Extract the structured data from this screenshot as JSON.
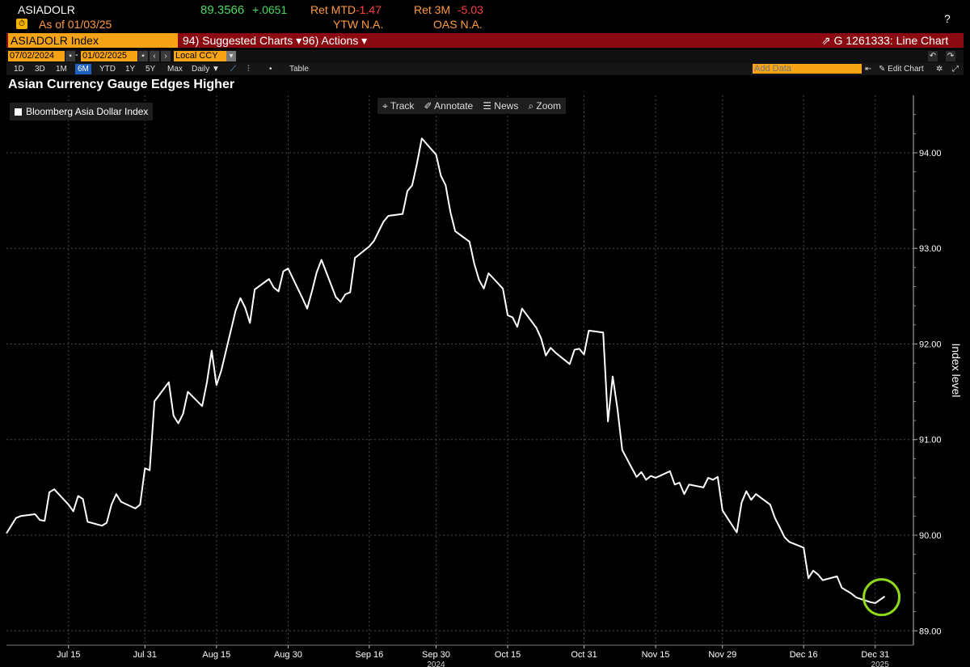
{
  "header": {
    "ticker": "ASIADOLR",
    "price": "89.3566",
    "change": "+.0651",
    "ret_mtd_label": "Ret MTD",
    "ret_mtd_value": "-1.47",
    "ret_3m_label": "Ret 3M",
    "ret_3m_value": "-5.03",
    "as_of": "As of  01/03/25",
    "ytw": "YTW N.A.",
    "oas": "OAS N.A.",
    "close_symbol": "?"
  },
  "toolbar": {
    "security": "ASIADOLR Index",
    "suggested": "94) Suggested Charts ▾",
    "actions": "96) Actions ▾",
    "chart_id": "⇗ G 1261333: Line Chart",
    "start_date": "07/02/2024",
    "dash": "-",
    "end_date": "01/02/2025",
    "currency": "Local CCY",
    "ranges": [
      "1D",
      "3D",
      "1M",
      "6M",
      "YTD",
      "1Y",
      "5Y",
      "Max"
    ],
    "period": "Daily ▼",
    "table": "Table",
    "add_data_placeholder": "Add Data",
    "edit_chart": "✎ Edit Chart"
  },
  "chart_tools": {
    "track": "⌖ Track",
    "annotate": "✐ Annotate",
    "news": "☰ News",
    "zoom": "⌕ Zoom"
  },
  "colors": {
    "background": "#000000",
    "line": "#ffffff",
    "grid": "#4a4a4a",
    "highlight_circle": "#8fd91a",
    "orange": "#f6a316",
    "red_bar": "#8b0a12"
  },
  "chart_data": {
    "type": "line",
    "title": "Asian Currency Gauge Edges Higher",
    "legend": [
      "Bloomberg Asia Dollar Index"
    ],
    "ylabel": "Index level",
    "ylim": [
      88.85,
      94.6
    ],
    "yticks": [
      89.0,
      90.0,
      91.0,
      92.0,
      93.0,
      94.0
    ],
    "ytick_labels": [
      "89.00",
      "90.00",
      "91.00",
      "92.00",
      "93.00",
      "94.00"
    ],
    "xlim": [
      "2024-07-02",
      "2025-01-08"
    ],
    "xticks": [
      "2024-07-15",
      "2024-07-31",
      "2024-08-15",
      "2024-08-30",
      "2024-09-16",
      "2024-09-30",
      "2024-10-15",
      "2024-10-31",
      "2024-11-15",
      "2024-11-29",
      "2024-12-16",
      "2024-12-31"
    ],
    "xtick_labels": [
      "Jul 15",
      "Jul 31",
      "Aug 15",
      "Aug 30",
      "Sep 16",
      "Sep 30",
      "Oct 15",
      "Oct 31",
      "Nov 15",
      "Nov 29",
      "Dec 16",
      "Dec 31"
    ],
    "year_labels": [
      {
        "date": "2024-09-30",
        "text": "2024"
      },
      {
        "date": "2025-01-01",
        "text": "2025"
      }
    ],
    "grid": true,
    "legend_position": "top-left",
    "series": [
      {
        "name": "Bloomberg Asia Dollar Index",
        "points": [
          [
            "2024-07-02",
            90.02
          ],
          [
            "2024-07-03",
            90.1
          ],
          [
            "2024-07-04",
            90.18
          ],
          [
            "2024-07-05",
            90.2
          ],
          [
            "2024-07-08",
            90.22
          ],
          [
            "2024-07-09",
            90.16
          ],
          [
            "2024-07-10",
            90.15
          ],
          [
            "2024-07-11",
            90.45
          ],
          [
            "2024-07-12",
            90.48
          ],
          [
            "2024-07-15",
            90.32
          ],
          [
            "2024-07-16",
            90.25
          ],
          [
            "2024-07-17",
            90.41
          ],
          [
            "2024-07-18",
            90.38
          ],
          [
            "2024-07-19",
            90.14
          ],
          [
            "2024-07-22",
            90.1
          ],
          [
            "2024-07-23",
            90.13
          ],
          [
            "2024-07-24",
            90.32
          ],
          [
            "2024-07-25",
            90.43
          ],
          [
            "2024-07-26",
            90.35
          ],
          [
            "2024-07-29",
            90.28
          ],
          [
            "2024-07-30",
            90.32
          ],
          [
            "2024-07-31",
            90.7
          ],
          [
            "2024-08-01",
            90.68
          ],
          [
            "2024-08-02",
            91.4
          ],
          [
            "2024-08-05",
            91.6
          ],
          [
            "2024-08-06",
            91.25
          ],
          [
            "2024-08-07",
            91.17
          ],
          [
            "2024-08-08",
            91.27
          ],
          [
            "2024-08-09",
            91.5
          ],
          [
            "2024-08-12",
            91.35
          ],
          [
            "2024-08-13",
            91.6
          ],
          [
            "2024-08-14",
            91.93
          ],
          [
            "2024-08-15",
            91.57
          ],
          [
            "2024-08-16",
            91.72
          ],
          [
            "2024-08-19",
            92.35
          ],
          [
            "2024-08-20",
            92.48
          ],
          [
            "2024-08-21",
            92.38
          ],
          [
            "2024-08-22",
            92.22
          ],
          [
            "2024-08-23",
            92.57
          ],
          [
            "2024-08-26",
            92.68
          ],
          [
            "2024-08-27",
            92.59
          ],
          [
            "2024-08-28",
            92.55
          ],
          [
            "2024-08-29",
            92.76
          ],
          [
            "2024-08-30",
            92.79
          ],
          [
            "2024-09-02",
            92.48
          ],
          [
            "2024-09-03",
            92.37
          ],
          [
            "2024-09-04",
            92.55
          ],
          [
            "2024-09-05",
            92.75
          ],
          [
            "2024-09-06",
            92.88
          ],
          [
            "2024-09-09",
            92.49
          ],
          [
            "2024-09-10",
            92.44
          ],
          [
            "2024-09-11",
            92.52
          ],
          [
            "2024-09-12",
            92.54
          ],
          [
            "2024-09-13",
            92.9
          ],
          [
            "2024-09-16",
            93.02
          ],
          [
            "2024-09-17",
            93.08
          ],
          [
            "2024-09-18",
            93.18
          ],
          [
            "2024-09-19",
            93.28
          ],
          [
            "2024-09-20",
            93.34
          ],
          [
            "2024-09-23",
            93.36
          ],
          [
            "2024-09-24",
            93.6
          ],
          [
            "2024-09-25",
            93.66
          ],
          [
            "2024-09-26",
            93.89
          ],
          [
            "2024-09-27",
            94.15
          ],
          [
            "2024-09-30",
            93.98
          ],
          [
            "2024-10-01",
            93.76
          ],
          [
            "2024-10-02",
            93.66
          ],
          [
            "2024-10-03",
            93.38
          ],
          [
            "2024-10-04",
            93.18
          ],
          [
            "2024-10-07",
            93.07
          ],
          [
            "2024-10-08",
            92.84
          ],
          [
            "2024-10-09",
            92.67
          ],
          [
            "2024-10-10",
            92.58
          ],
          [
            "2024-10-11",
            92.74
          ],
          [
            "2024-10-14",
            92.58
          ],
          [
            "2024-10-15",
            92.3
          ],
          [
            "2024-10-16",
            92.28
          ],
          [
            "2024-10-17",
            92.18
          ],
          [
            "2024-10-18",
            92.37
          ],
          [
            "2024-10-21",
            92.17
          ],
          [
            "2024-10-22",
            92.06
          ],
          [
            "2024-10-23",
            91.88
          ],
          [
            "2024-10-24",
            91.96
          ],
          [
            "2024-10-25",
            91.91
          ],
          [
            "2024-10-28",
            91.79
          ],
          [
            "2024-10-29",
            91.94
          ],
          [
            "2024-10-30",
            91.95
          ],
          [
            "2024-10-31",
            91.89
          ],
          [
            "2024-11-01",
            92.14
          ],
          [
            "2024-11-04",
            92.12
          ],
          [
            "2024-11-05",
            91.19
          ],
          [
            "2024-11-06",
            91.66
          ],
          [
            "2024-11-07",
            91.32
          ],
          [
            "2024-11-08",
            90.89
          ],
          [
            "2024-11-11",
            90.61
          ],
          [
            "2024-11-12",
            90.66
          ],
          [
            "2024-11-13",
            90.58
          ],
          [
            "2024-11-14",
            90.62
          ],
          [
            "2024-11-15",
            90.6
          ],
          [
            "2024-11-18",
            90.67
          ],
          [
            "2024-11-19",
            90.53
          ],
          [
            "2024-11-20",
            90.55
          ],
          [
            "2024-11-21",
            90.43
          ],
          [
            "2024-11-22",
            90.53
          ],
          [
            "2024-11-25",
            90.5
          ],
          [
            "2024-11-26",
            90.6
          ],
          [
            "2024-11-27",
            90.58
          ],
          [
            "2024-11-28",
            90.61
          ],
          [
            "2024-11-29",
            90.26
          ],
          [
            "2024-12-02",
            90.03
          ],
          [
            "2024-12-03",
            90.34
          ],
          [
            "2024-12-04",
            90.46
          ],
          [
            "2024-12-05",
            90.37
          ],
          [
            "2024-12-06",
            90.43
          ],
          [
            "2024-12-09",
            90.32
          ],
          [
            "2024-12-10",
            90.18
          ],
          [
            "2024-12-11",
            90.08
          ],
          [
            "2024-12-12",
            89.98
          ],
          [
            "2024-12-13",
            89.93
          ],
          [
            "2024-12-16",
            89.87
          ],
          [
            "2024-12-17",
            89.55
          ],
          [
            "2024-12-18",
            89.63
          ],
          [
            "2024-12-19",
            89.59
          ],
          [
            "2024-12-20",
            89.53
          ],
          [
            "2024-12-23",
            89.57
          ],
          [
            "2024-12-24",
            89.45
          ],
          [
            "2024-12-26",
            89.39
          ],
          [
            "2024-12-27",
            89.35
          ],
          [
            "2024-12-30",
            89.3
          ],
          [
            "2024-12-31",
            89.29
          ],
          [
            "2025-01-02",
            89.36
          ]
        ]
      }
    ],
    "highlight": {
      "date": "2025-01-02",
      "value": 89.36
    }
  }
}
